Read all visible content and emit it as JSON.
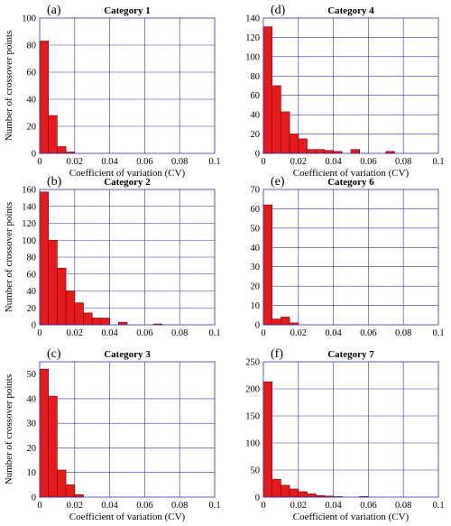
{
  "colors": {
    "bar_fill": "#e41a1c",
    "bar_stroke": "#7a0000",
    "axis": "#3030b0",
    "grid": "#3030b0",
    "text": "#000000"
  },
  "chart_data": [
    {
      "panel": "(a)",
      "type": "bar",
      "title": "Category 1",
      "xlabel": "Coefficient of variation (CV)",
      "ylabel": "Number of crossover points",
      "xlim": [
        0,
        0.1
      ],
      "ylim": [
        0,
        100
      ],
      "bin_width": 0.005,
      "grid": true,
      "xticks": [
        "0",
        "0.02",
        "0.04",
        "0.06",
        "0.08",
        "0.1"
      ],
      "yticks": [
        "0",
        "20",
        "40",
        "60",
        "80",
        "100"
      ],
      "values": [
        83,
        28,
        5,
        1
      ]
    },
    {
      "panel": "(d)",
      "type": "bar",
      "title": "Category 4",
      "xlabel": "Coefficient of variation (CV)",
      "ylabel": "",
      "xlim": [
        0,
        0.1
      ],
      "ylim": [
        0,
        140
      ],
      "bin_width": 0.005,
      "grid": true,
      "xticks": [
        "0",
        "0.02",
        "0.04",
        "0.06",
        "0.08",
        "0.1"
      ],
      "yticks": [
        "0",
        "20",
        "40",
        "60",
        "80",
        "100",
        "120",
        "140"
      ],
      "values": [
        131,
        70,
        43,
        20,
        15,
        4,
        4,
        3,
        2,
        0,
        4,
        0,
        0,
        0,
        2
      ]
    },
    {
      "panel": "(b)",
      "type": "bar",
      "title": "Category 2",
      "xlabel": "",
      "ylabel": "Number of crossover points",
      "xlim": [
        0,
        0.1
      ],
      "ylim": [
        0,
        160
      ],
      "bin_width": 0.005,
      "grid": true,
      "xticks": [
        "0",
        "0.02",
        "0.04",
        "0.06",
        "0.08",
        "0.1"
      ],
      "yticks": [
        "0",
        "20",
        "40",
        "60",
        "80",
        "100",
        "120",
        "140",
        "160"
      ],
      "values": [
        157,
        100,
        67,
        40,
        26,
        14,
        8,
        8,
        0,
        3,
        0,
        0,
        0,
        1
      ]
    },
    {
      "panel": "(e)",
      "type": "bar",
      "title": "Category 6",
      "xlabel": "",
      "ylabel": "",
      "xlim": [
        0,
        0.1
      ],
      "ylim": [
        0,
        70
      ],
      "bin_width": 0.005,
      "grid": true,
      "xticks": [
        "0",
        "0.02",
        "0.04",
        "0.06",
        "0.08",
        "0.1"
      ],
      "yticks": [
        "0",
        "10",
        "20",
        "30",
        "40",
        "50",
        "60",
        "70"
      ],
      "values": [
        62,
        3,
        4,
        1
      ]
    },
    {
      "panel": "(c)",
      "type": "bar",
      "title": "Category 3",
      "xlabel": "Coefficient of variation (CV)",
      "ylabel": "Number of crossover points",
      "xlim": [
        0,
        0.1
      ],
      "ylim": [
        0,
        55
      ],
      "bin_width": 0.005,
      "grid": true,
      "xticks": [
        "0",
        "0.02",
        "0.04",
        "0.06",
        "0.08",
        "0.1"
      ],
      "yticks": [
        "0",
        "10",
        "20",
        "30",
        "40",
        "50"
      ],
      "values": [
        52,
        41,
        11,
        5,
        1
      ]
    },
    {
      "panel": "(f)",
      "type": "bar",
      "title": "Category 7",
      "xlabel": "Coefficient of variation (CV)",
      "ylabel": "",
      "xlim": [
        0,
        0.1
      ],
      "ylim": [
        0,
        250
      ],
      "bin_width": 0.005,
      "grid": true,
      "xticks": [
        "0",
        "0.02",
        "0.04",
        "0.06",
        "0.08",
        "0.1"
      ],
      "yticks": [
        "0",
        "50",
        "100",
        "150",
        "200",
        "250"
      ],
      "values": [
        213,
        33,
        22,
        15,
        10,
        6,
        3,
        2,
        1,
        0,
        0,
        1
      ]
    }
  ]
}
